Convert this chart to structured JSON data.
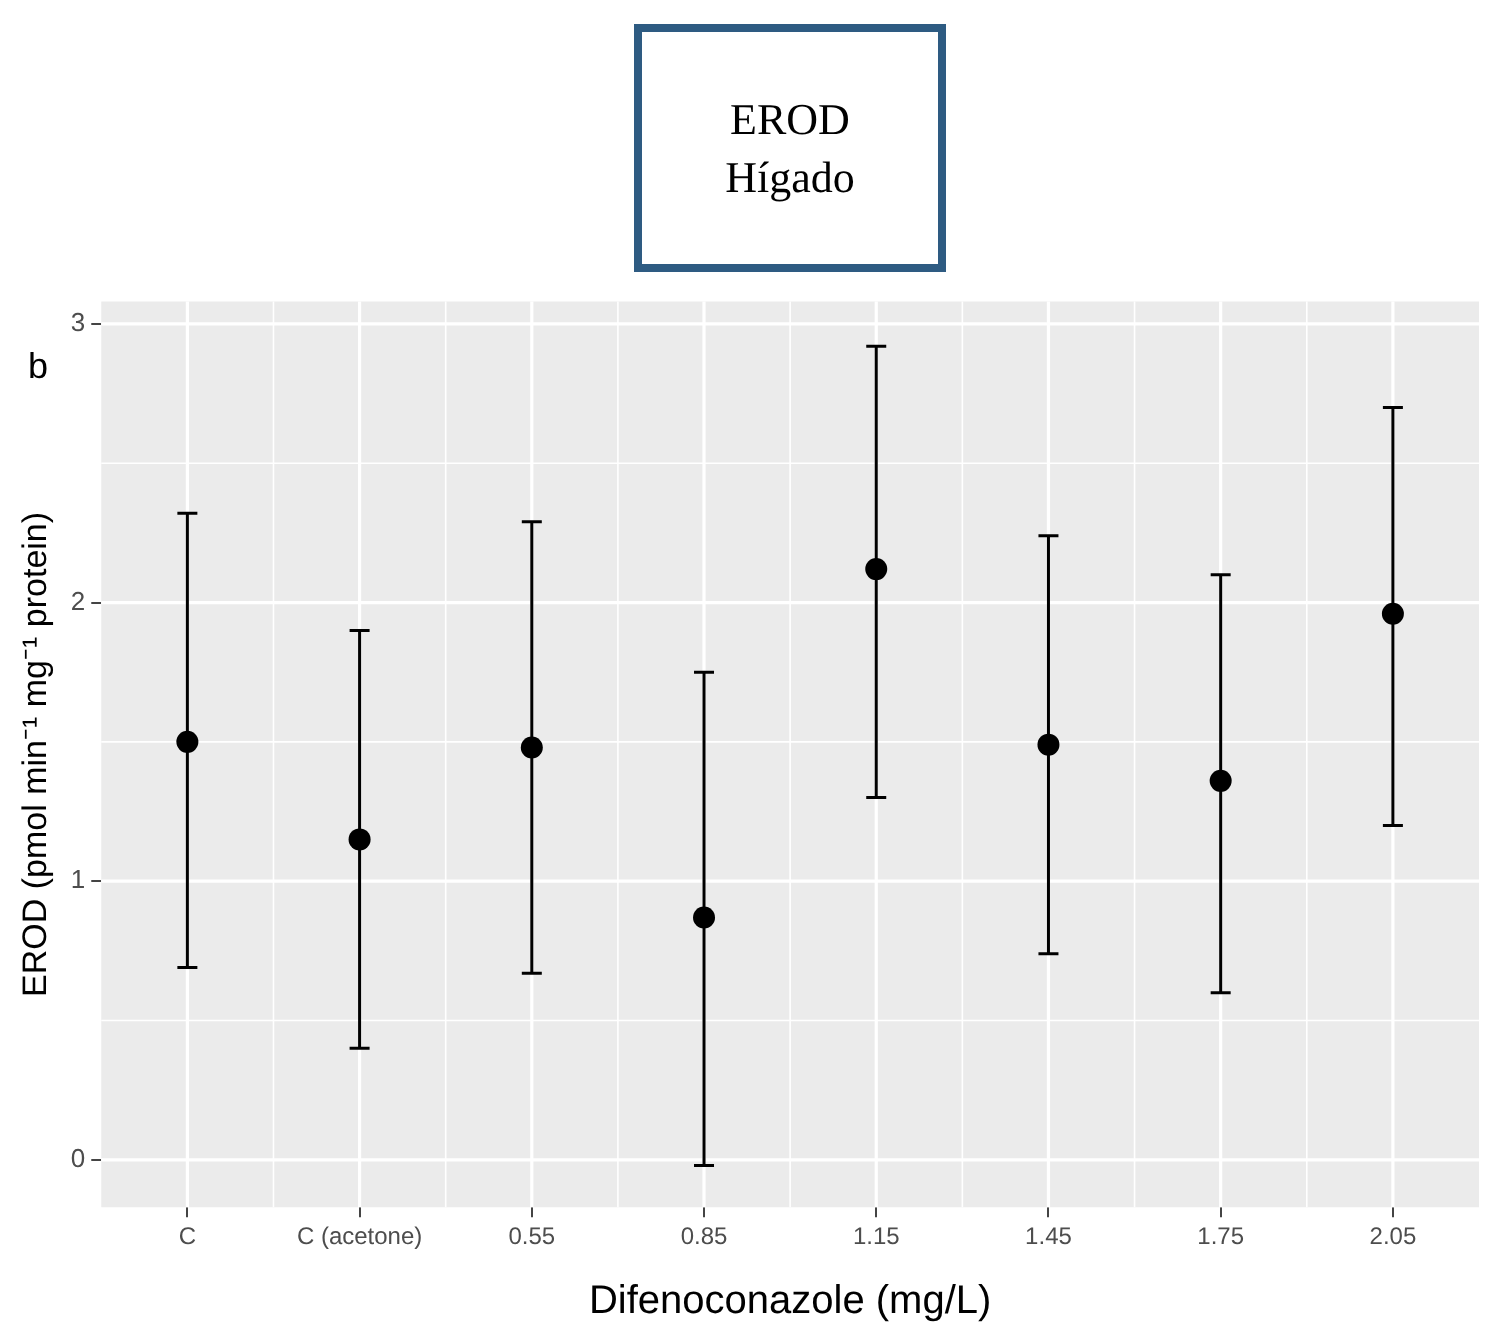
{
  "chart_data": {
    "type": "scatter",
    "title": "EROD\nHígado",
    "xlabel": "Difenoconazole (mg/L)",
    "ylabel": "EROD (pmol min⁻¹ mg⁻¹ protein)",
    "annotations": [
      "b"
    ],
    "categories": [
      "C",
      "C (acetone)",
      "0.55",
      "0.85",
      "1.15",
      "1.45",
      "1.75",
      "2.05"
    ],
    "series": [
      {
        "color": "#000000",
        "values": [
          1.5,
          1.15,
          1.48,
          0.87,
          2.12,
          1.49,
          1.36,
          1.96
        ],
        "errors": [
          [
            0.69,
            2.32
          ],
          [
            0.4,
            1.9
          ],
          [
            0.67,
            2.29
          ],
          [
            -0.02,
            1.75
          ],
          [
            1.3,
            2.92
          ],
          [
            0.74,
            2.24
          ],
          [
            0.6,
            2.1
          ],
          [
            1.2,
            2.7
          ]
        ]
      }
    ],
    "ylim": [
      -0.17,
      3.08
    ],
    "yticks": [
      0,
      1,
      2,
      3
    ],
    "grid": true,
    "legend": false,
    "marker": "circle"
  }
}
